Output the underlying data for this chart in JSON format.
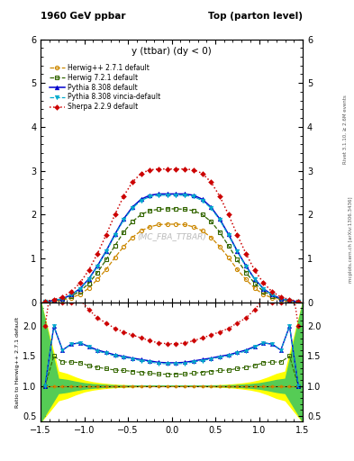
{
  "title_left": "1960 GeV ppbar",
  "title_right": "Top (parton level)",
  "plot_title": "y (ttbar) (dy < 0)",
  "watermark": "(MC_FBA_TTBAR)",
  "right_label1": "Rivet 3.1.10, ≥ 2.6M events",
  "right_label2": "mcplots.cern.ch [arXiv:1306.3436]",
  "ylabel_ratio": "Ratio to Herwig++ 2.7.1 default",
  "xlim": [
    -1.5,
    1.5
  ],
  "ylim_main": [
    0,
    6
  ],
  "ylim_ratio": [
    0.4,
    2.4
  ],
  "yticks_main": [
    0,
    1,
    2,
    3,
    4,
    5,
    6
  ],
  "yticks_ratio": [
    0.5,
    1.0,
    1.5,
    2.0
  ],
  "x_main": [
    -1.45,
    -1.35,
    -1.25,
    -1.15,
    -1.05,
    -0.95,
    -0.85,
    -0.75,
    -0.65,
    -0.55,
    -0.45,
    -0.35,
    -0.25,
    -0.15,
    -0.05,
    0.05,
    0.15,
    0.25,
    0.35,
    0.45,
    0.55,
    0.65,
    0.75,
    0.85,
    0.95,
    1.05,
    1.15,
    1.25,
    1.35,
    1.45
  ],
  "herwig271_y": [
    0.01,
    0.02,
    0.05,
    0.1,
    0.18,
    0.32,
    0.52,
    0.75,
    1.02,
    1.27,
    1.48,
    1.63,
    1.72,
    1.77,
    1.78,
    1.78,
    1.77,
    1.72,
    1.63,
    1.48,
    1.27,
    1.02,
    0.75,
    0.52,
    0.32,
    0.18,
    0.1,
    0.05,
    0.02,
    0.01
  ],
  "herwig721_y": [
    0.01,
    0.03,
    0.07,
    0.14,
    0.25,
    0.43,
    0.68,
    0.97,
    1.29,
    1.6,
    1.84,
    2.0,
    2.09,
    2.12,
    2.13,
    2.13,
    2.12,
    2.09,
    2.0,
    1.84,
    1.6,
    1.29,
    0.97,
    0.68,
    0.43,
    0.25,
    0.14,
    0.07,
    0.03,
    0.01
  ],
  "pythia8308_y": [
    0.01,
    0.04,
    0.08,
    0.17,
    0.31,
    0.53,
    0.83,
    1.17,
    1.55,
    1.9,
    2.17,
    2.35,
    2.44,
    2.47,
    2.47,
    2.47,
    2.47,
    2.44,
    2.35,
    2.17,
    1.9,
    1.55,
    1.17,
    0.83,
    0.53,
    0.31,
    0.17,
    0.08,
    0.04,
    0.01
  ],
  "pythia8308v_y": [
    0.01,
    0.04,
    0.08,
    0.17,
    0.31,
    0.52,
    0.82,
    1.16,
    1.53,
    1.88,
    2.15,
    2.32,
    2.41,
    2.44,
    2.44,
    2.44,
    2.44,
    2.41,
    2.32,
    2.15,
    1.88,
    1.53,
    1.16,
    0.82,
    0.52,
    0.31,
    0.17,
    0.08,
    0.04,
    0.01
  ],
  "sherpa229_y": [
    0.02,
    0.06,
    0.12,
    0.24,
    0.44,
    0.73,
    1.11,
    1.54,
    2.0,
    2.42,
    2.74,
    2.94,
    3.02,
    3.04,
    3.04,
    3.04,
    3.04,
    3.02,
    2.94,
    2.74,
    2.42,
    2.0,
    1.54,
    1.11,
    0.73,
    0.44,
    0.24,
    0.12,
    0.06,
    0.02
  ],
  "herwig271_color": "#cc8800",
  "herwig721_color": "#336600",
  "pythia8308_color": "#0000cc",
  "pythia8308v_color": "#00aacc",
  "sherpa229_color": "#cc0000",
  "herwig271_ratio": [
    1.0,
    1.0,
    1.0,
    1.0,
    1.0,
    1.0,
    1.0,
    1.0,
    1.0,
    1.0,
    1.0,
    1.0,
    1.0,
    1.0,
    1.0,
    1.0,
    1.0,
    1.0,
    1.0,
    1.0,
    1.0,
    1.0,
    1.0,
    1.0,
    1.0,
    1.0,
    1.0,
    1.0,
    1.0,
    1.0
  ],
  "herwig721_ratio": [
    1.0,
    1.5,
    1.4,
    1.4,
    1.39,
    1.34,
    1.31,
    1.29,
    1.265,
    1.26,
    1.243,
    1.227,
    1.215,
    1.198,
    1.197,
    1.197,
    1.198,
    1.215,
    1.227,
    1.243,
    1.26,
    1.265,
    1.29,
    1.31,
    1.34,
    1.39,
    1.4,
    1.4,
    1.5,
    1.0
  ],
  "pythia8308_ratio": [
    1.0,
    2.0,
    1.6,
    1.7,
    1.72,
    1.66,
    1.6,
    1.56,
    1.52,
    1.496,
    1.466,
    1.442,
    1.419,
    1.395,
    1.388,
    1.388,
    1.395,
    1.419,
    1.442,
    1.466,
    1.496,
    1.52,
    1.56,
    1.6,
    1.66,
    1.72,
    1.7,
    1.6,
    2.0,
    1.0
  ],
  "pythia8308v_ratio": [
    1.0,
    2.0,
    1.6,
    1.7,
    1.72,
    1.65,
    1.58,
    1.547,
    1.5,
    1.48,
    1.453,
    1.423,
    1.401,
    1.376,
    1.371,
    1.371,
    1.376,
    1.401,
    1.423,
    1.453,
    1.48,
    1.5,
    1.547,
    1.58,
    1.65,
    1.72,
    1.7,
    1.6,
    2.0,
    1.0
  ],
  "sherpa229_ratio": [
    2.0,
    3.0,
    2.4,
    2.4,
    2.44,
    2.28,
    2.135,
    2.053,
    1.961,
    1.905,
    1.851,
    1.804,
    1.756,
    1.718,
    1.708,
    1.708,
    1.718,
    1.756,
    1.804,
    1.851,
    1.905,
    1.961,
    2.053,
    2.135,
    2.28,
    2.44,
    2.4,
    2.4,
    3.0,
    2.0
  ],
  "ref_band_x": [
    -1.5,
    -1.3,
    -1.2,
    -1.1,
    -1.0,
    -0.9,
    -0.8,
    -0.7,
    -0.6,
    -0.5,
    -0.4,
    -0.3,
    -0.2,
    -0.1,
    0.0,
    0.1,
    0.2,
    0.3,
    0.4,
    0.5,
    0.6,
    0.7,
    0.8,
    0.9,
    1.0,
    1.1,
    1.2,
    1.3,
    1.5
  ],
  "ref_band_green_lo": [
    0.4,
    0.88,
    0.9,
    0.93,
    0.955,
    0.97,
    0.98,
    0.987,
    0.992,
    0.995,
    0.997,
    0.999,
    1.0,
    1.0,
    1.0,
    1.0,
    1.0,
    0.999,
    0.997,
    0.995,
    0.992,
    0.987,
    0.98,
    0.97,
    0.955,
    0.93,
    0.9,
    0.88,
    0.4
  ],
  "ref_band_green_hi": [
    2.4,
    1.12,
    1.1,
    1.07,
    1.045,
    1.03,
    1.02,
    1.013,
    1.008,
    1.005,
    1.003,
    1.001,
    1.0,
    1.0,
    1.0,
    1.0,
    1.0,
    1.001,
    1.003,
    1.005,
    1.008,
    1.013,
    1.02,
    1.03,
    1.045,
    1.07,
    1.1,
    1.12,
    2.4
  ],
  "ref_band_yellow_lo": [
    0.4,
    0.76,
    0.8,
    0.86,
    0.91,
    0.94,
    0.96,
    0.974,
    0.984,
    0.99,
    0.994,
    0.997,
    0.999,
    1.0,
    1.0,
    1.0,
    0.999,
    0.997,
    0.994,
    0.99,
    0.984,
    0.974,
    0.96,
    0.94,
    0.91,
    0.86,
    0.8,
    0.76,
    0.4
  ],
  "ref_band_yellow_hi": [
    2.4,
    1.24,
    1.2,
    1.14,
    1.09,
    1.06,
    1.04,
    1.026,
    1.016,
    1.01,
    1.006,
    1.003,
    1.001,
    1.0,
    1.0,
    1.0,
    1.001,
    1.003,
    1.006,
    1.01,
    1.016,
    1.026,
    1.04,
    1.06,
    1.09,
    1.14,
    1.2,
    1.24,
    2.4
  ]
}
